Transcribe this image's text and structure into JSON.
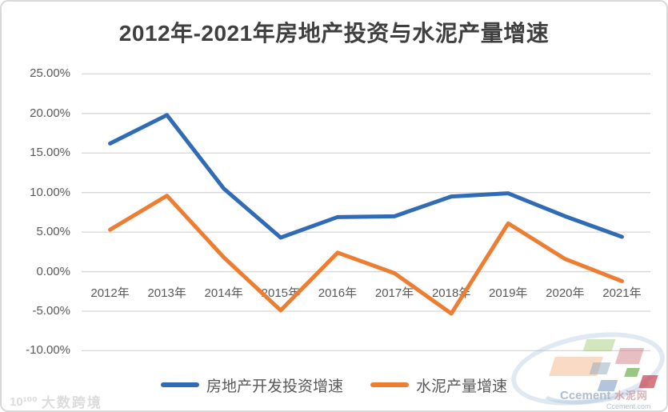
{
  "title": "2012年-2021年房地产投资与水泥产量增速",
  "chart_data": {
    "type": "line",
    "title": "2012年-2021年房地产投资与水泥产量增速",
    "categories": [
      "2012年",
      "2013年",
      "2014年",
      "2015年",
      "2016年",
      "2017年",
      "2018年",
      "2019年",
      "2020年",
      "2021年"
    ],
    "series": [
      {
        "name": "房地产开发投资增速",
        "color": "#306cb5",
        "values": [
          16.2,
          19.8,
          10.5,
          4.3,
          6.9,
          7.0,
          9.5,
          9.9,
          7.0,
          4.4
        ]
      },
      {
        "name": "水泥产量增速",
        "color": "#ed7d31",
        "values": [
          5.3,
          9.6,
          1.8,
          -4.9,
          2.4,
          -0.2,
          -5.3,
          6.1,
          1.6,
          -1.2
        ]
      }
    ],
    "ylim": [
      -10,
      25
    ],
    "y_ticks": [
      25,
      20,
      15,
      10,
      5,
      0,
      -5,
      -10
    ],
    "y_tick_labels": [
      "25.00%",
      "20.00%",
      "15.00%",
      "10.00%",
      "5.00%",
      "0.00%",
      "-5.00%",
      "-10.00%"
    ],
    "grid": true,
    "legend_position": "bottom"
  },
  "colors": {
    "grid": "#d6d6d6",
    "axis_text": "#595959",
    "title_text": "#3f3f3f",
    "blue": "#306cb5",
    "orange": "#ed7d31"
  },
  "watermarks": {
    "left_logo": "10¹⁰⁰",
    "left_text": "大数跨境",
    "right_brand": "Ccement",
    "right_brand_cn": "水泥网",
    "right_domain": "Ccement.com"
  }
}
